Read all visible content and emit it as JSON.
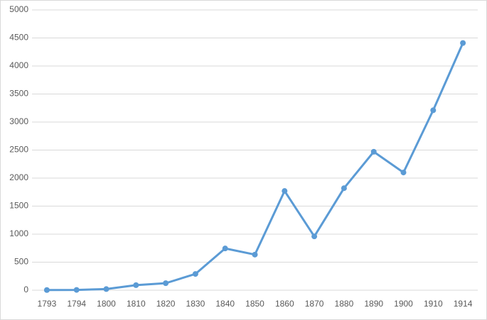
{
  "chart_data": {
    "type": "line",
    "categories": [
      "1793",
      "1794",
      "1800",
      "1810",
      "1820",
      "1830",
      "1840",
      "1850",
      "1860",
      "1870",
      "1880",
      "1890",
      "1900",
      "1910",
      "1914"
    ],
    "series": [
      {
        "color": "#5b9bd5",
        "values": [
          3,
          5,
          20,
          90,
          125,
          290,
          745,
          635,
          1770,
          960,
          1820,
          2470,
          2100,
          3210,
          4410
        ]
      }
    ],
    "ylim": [
      0,
      5000
    ],
    "yticks": [
      0,
      500,
      1000,
      1500,
      2000,
      2500,
      3000,
      3500,
      4000,
      4500,
      5000
    ],
    "grid": true
  }
}
